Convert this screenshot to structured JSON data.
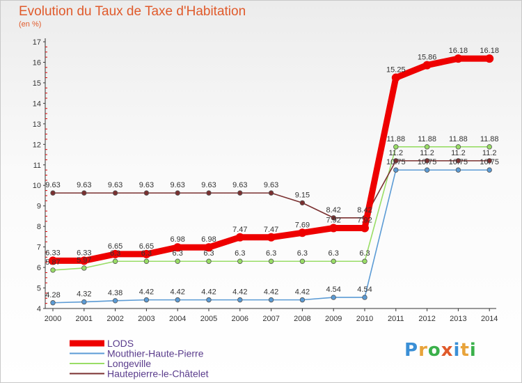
{
  "header": {
    "title": "Evolution du Taux de Taxe d'Habitation",
    "subtitle": "(en %)"
  },
  "brand": {
    "text": "Proxiti",
    "letter_colors": [
      "#3a8fd6",
      "#e8a33a",
      "#3ab04a",
      "#e05a2b",
      "#3a8fd6",
      "#e8a33a",
      "#3ab04a"
    ]
  },
  "chart_data": {
    "type": "line",
    "x": [
      "2000",
      "2001",
      "2002",
      "2003",
      "2004",
      "2005",
      "2006",
      "2007",
      "2008",
      "2009",
      "2010",
      "2011",
      "2012",
      "2013",
      "2014"
    ],
    "ylim": [
      4,
      17
    ],
    "yticks": [
      4,
      5,
      6,
      7,
      8,
      9,
      10,
      11,
      12,
      13,
      14,
      15,
      16,
      17
    ],
    "grid": false,
    "legend_position": "bottom-left",
    "series": [
      {
        "name": "LODS",
        "color": "#ee0000",
        "emphasis": true,
        "values": [
          6.33,
          6.33,
          6.65,
          6.65,
          6.98,
          6.98,
          7.47,
          7.47,
          7.69,
          7.92,
          7.92,
          15.25,
          15.86,
          16.18,
          16.18
        ],
        "labels": [
          "6.33",
          "6.33",
          "6.65",
          "6.65",
          "6.98",
          "6.98",
          "7.47",
          "7.47",
          "7.69",
          "7.92",
          "7.92",
          "15.25",
          "15.86",
          "16.18",
          "16.18"
        ]
      },
      {
        "name": "Mouthier-Haute-Pierre",
        "color": "#5b9bd5",
        "values": [
          4.28,
          4.32,
          4.38,
          4.42,
          4.42,
          4.42,
          4.42,
          4.42,
          4.42,
          4.54,
          4.54,
          10.75,
          10.75,
          10.75,
          10.75
        ],
        "labels": [
          "4.28",
          "4.32",
          "4.38",
          "4.42",
          "4.42",
          "4.42",
          "4.42",
          "4.42",
          "4.42",
          "4.54",
          "4.54",
          "10.75",
          "10.75",
          "10.75",
          "10.75"
        ]
      },
      {
        "name": "Longeville",
        "color": "#99dd66",
        "values": [
          5.87,
          5.97,
          6.3,
          6.3,
          6.3,
          6.3,
          6.3,
          6.3,
          6.3,
          6.3,
          6.3,
          11.88,
          11.88,
          11.88,
          11.88
        ],
        "labels": [
          "5.87",
          "5.97",
          "6.3",
          "6.3",
          "6.3",
          "6.3",
          "6.3",
          "6.3",
          "6.3",
          "6.3",
          "6.3",
          "11.88",
          "11.88",
          "11.88",
          "11.88"
        ]
      },
      {
        "name": "Hautepierre-le-Châtelet",
        "color": "#7a3030",
        "values": [
          9.63,
          9.63,
          9.63,
          9.63,
          9.63,
          9.63,
          9.63,
          9.63,
          9.15,
          8.42,
          8.42,
          11.2,
          11.2,
          11.2,
          11.2
        ],
        "labels": [
          "9.63",
          "9.63",
          "9.63",
          "9.63",
          "9.63",
          "9.63",
          "9.63",
          "9.63",
          "9.15",
          "8.42",
          "8.42",
          "11.2",
          "11.2",
          "11.2",
          "11.2"
        ]
      }
    ]
  }
}
